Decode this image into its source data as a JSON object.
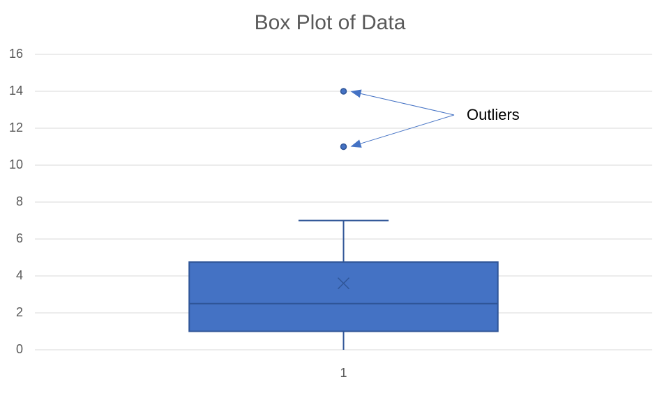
{
  "chart_data": {
    "type": "box",
    "title": "Box Plot of Data",
    "categories": [
      "1"
    ],
    "boxes": [
      {
        "min": 0,
        "q1": 1,
        "median": 2.5,
        "q3": 4.75,
        "max": 7,
        "mean": 3.6,
        "outliers": [
          14,
          11
        ]
      }
    ],
    "color": "#4472c4",
    "edge_color": "#2f5597",
    "ylim": [
      0,
      16
    ],
    "yticks": [
      0,
      2,
      4,
      6,
      8,
      10,
      12,
      14,
      16
    ],
    "grid": true,
    "annotation": "Outliers"
  }
}
